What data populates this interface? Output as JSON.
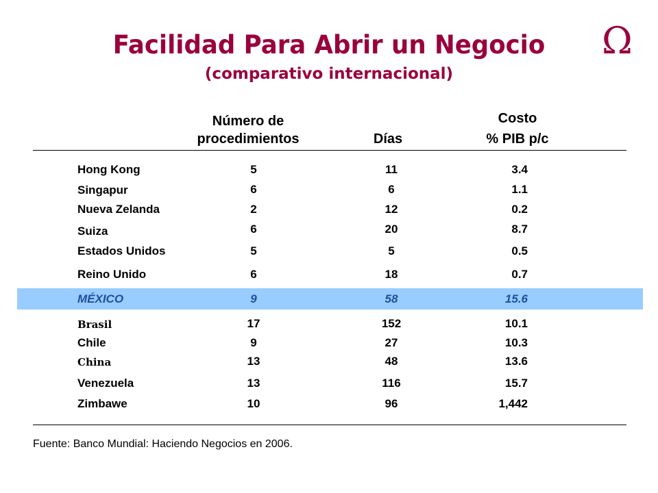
{
  "title": "Facilidad Para Abrir un Negocio",
  "subtitle": "(comparativo internacional)",
  "logo_symbol": "Ω",
  "colors": {
    "title": "#99003d",
    "highlight_row": "#99ccff",
    "highlight_text": "#1f4e9c"
  },
  "headers": {
    "procedimientos_line1": "Número de",
    "procedimientos_line2": "procedimientos",
    "dias": "Días",
    "costo_line1": "Costo",
    "costo_line2": "% PIB p/c"
  },
  "rows": [
    {
      "pais": "Hong Kong",
      "procedimientos": "5",
      "dias": "11",
      "costo": "3.4"
    },
    {
      "pais": "Singapur",
      "procedimientos": "6",
      "dias": "6",
      "costo": "1.1"
    },
    {
      "pais": "Nueva Zelanda",
      "procedimientos": "2",
      "dias": "12",
      "costo": "0.2"
    },
    {
      "pais": "Suiza",
      "procedimientos": "6",
      "dias": "20",
      "costo": "8.7"
    },
    {
      "pais": "Estados Unidos",
      "procedimientos": "5",
      "dias": "5",
      "costo": "0.5"
    },
    {
      "pais": "Reino Unido",
      "procedimientos": "6",
      "dias": "18",
      "costo": "0.7"
    },
    {
      "pais": "MÉXICO",
      "procedimientos": "9",
      "dias": "58",
      "costo": "15.6"
    },
    {
      "pais": "Brasil",
      "procedimientos": "17",
      "dias": "152",
      "costo": "10.1"
    },
    {
      "pais": "Chile",
      "procedimientos": "9",
      "dias": "27",
      "costo": "10.3"
    },
    {
      "pais": "China",
      "procedimientos": "13",
      "dias": "48",
      "costo": "13.6"
    },
    {
      "pais": "Venezuela",
      "procedimientos": "13",
      "dias": "116",
      "costo": "15.7"
    },
    {
      "pais": "Zimbawe",
      "procedimientos": "10",
      "dias": "96",
      "costo": "1,442"
    }
  ],
  "source": "Fuente: Banco Mundial: Haciendo Negocios en 2006."
}
